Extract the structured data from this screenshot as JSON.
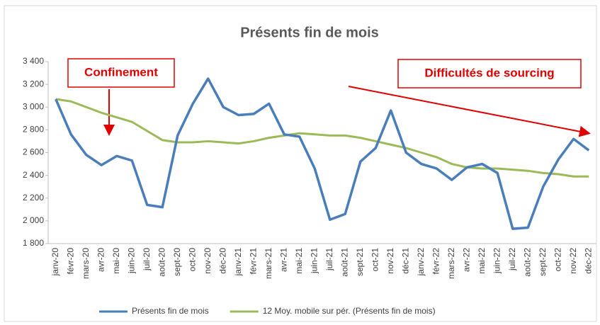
{
  "chart_data": {
    "type": "line",
    "title": "Présents fin de mois",
    "categories": [
      "janv-20",
      "févr-20",
      "mars-20",
      "avr-20",
      "mai-20",
      "juin-20",
      "juil-20",
      "août-20",
      "sept-20",
      "oct-20",
      "nov-20",
      "déc-20",
      "janv-21",
      "févr-21",
      "mars-21",
      "avr-21",
      "mai-21",
      "juin-21",
      "juil-21",
      "août-21",
      "sept-21",
      "oct-21",
      "nov-21",
      "déc-21",
      "janv-22",
      "févr-22",
      "mars-22",
      "avr-22",
      "mai-22",
      "juin-22",
      "juil-22",
      "août-22",
      "sept-22",
      "oct-22",
      "nov-22",
      "déc-22"
    ],
    "series": [
      {
        "name": "Présents fin de mois",
        "color": "#4a7ebb",
        "values": [
          3070,
          2760,
          2580,
          2490,
          2570,
          2530,
          2140,
          2120,
          2750,
          3030,
          3250,
          3000,
          2930,
          2940,
          3030,
          2760,
          2740,
          2460,
          2010,
          2060,
          2520,
          2640,
          2970,
          2600,
          2500,
          2460,
          2360,
          2470,
          2500,
          2420,
          1930,
          1940,
          2300,
          2540,
          2720,
          2620
        ]
      },
      {
        "name": "12 Moy. mobile sur pér. (Présents fin de mois)",
        "color": "#9bbb59",
        "values": [
          3070,
          3050,
          3000,
          2950,
          2910,
          2870,
          2790,
          2710,
          2690,
          2690,
          2700,
          2690,
          2680,
          2700,
          2730,
          2750,
          2770,
          2760,
          2750,
          2750,
          2730,
          2700,
          2670,
          2640,
          2600,
          2560,
          2500,
          2470,
          2460,
          2460,
          2450,
          2440,
          2420,
          2410,
          2390,
          2390
        ]
      }
    ],
    "ylim": [
      1800,
      3400
    ],
    "yticks": [
      {
        "value": 1800,
        "label": "1 800"
      },
      {
        "value": 2000,
        "label": "2 000"
      },
      {
        "value": 2200,
        "label": "2 200"
      },
      {
        "value": 2400,
        "label": "2 400"
      },
      {
        "value": 2600,
        "label": "2 600"
      },
      {
        "value": 2800,
        "label": "2 800"
      },
      {
        "value": 3000,
        "label": "3 000"
      },
      {
        "value": 3200,
        "label": "3 200"
      },
      {
        "value": 3400,
        "label": "3 400"
      }
    ],
    "grid": false,
    "legend": "bottom",
    "annotations": [
      "Confinement",
      "Difficultés de sourcing"
    ]
  }
}
